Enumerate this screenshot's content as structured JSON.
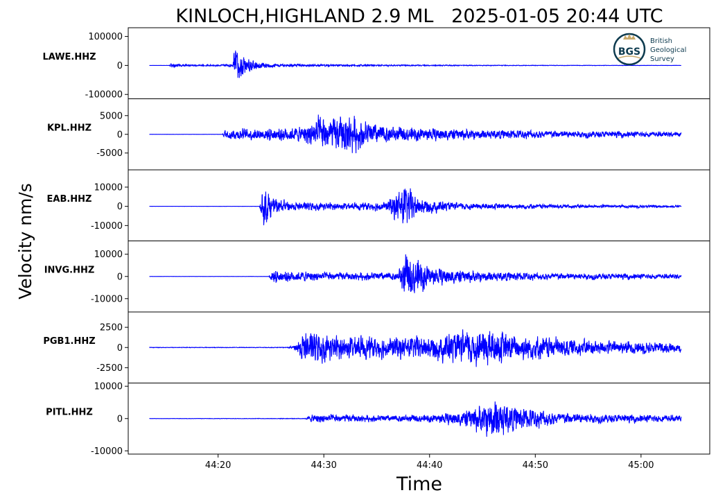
{
  "chart_data": {
    "type": "line",
    "title": "KINLOCH,HIGHLAND 2.9 ML   2025-01-05 20:44 UTC",
    "xlabel": "Time",
    "ylabel": "Velocity nm/s",
    "xlim": [
      11.5,
      66.5
    ],
    "x_ticks": [
      {
        "t": 20,
        "label": "44:20"
      },
      {
        "t": 30,
        "label": "44:30"
      },
      {
        "t": 40,
        "label": "44:40"
      },
      {
        "t": 50,
        "label": "44:50"
      },
      {
        "t": 60,
        "label": "45:00"
      }
    ],
    "trace_start": 13.5,
    "trace_end": 63.8,
    "line_color": "#0000ff",
    "logo": {
      "text_lines": [
        "British",
        "Geological",
        "Survey"
      ],
      "badge": "BGS",
      "color": "#0e3b4f",
      "accent": "#c9a96a"
    },
    "series": [
      {
        "name": "LAWE.HHZ",
        "ylim": [
          -115000,
          130000
        ],
        "yticks": [
          {
            "v": 100000,
            "label": "100000"
          },
          {
            "v": 0,
            "label": "0"
          },
          {
            "v": -100000,
            "label": "-100000"
          }
        ],
        "envelope": [
          [
            13.5,
            200
          ],
          [
            15.4,
            400
          ],
          [
            15.5,
            14000
          ],
          [
            16.5,
            5000
          ],
          [
            20.0,
            4000
          ],
          [
            21.4,
            8000
          ],
          [
            21.6,
            130000
          ],
          [
            22.2,
            60000
          ],
          [
            23.5,
            25000
          ],
          [
            25.5,
            8000
          ],
          [
            30,
            6000
          ],
          [
            40,
            3000
          ],
          [
            50,
            1500
          ],
          [
            63.8,
            600
          ]
        ]
      },
      {
        "name": "KPL.HHZ",
        "ylim": [
          -9500,
          9500
        ],
        "yticks": [
          {
            "v": 5000,
            "label": "5000"
          },
          {
            "v": 0,
            "label": "0"
          },
          {
            "v": -5000,
            "label": "-5000"
          }
        ],
        "envelope": [
          [
            13.5,
            10
          ],
          [
            20.4,
            10
          ],
          [
            20.6,
            2000
          ],
          [
            24,
            2500
          ],
          [
            28,
            3000
          ],
          [
            29.5,
            7000
          ],
          [
            31,
            6500
          ],
          [
            32.3,
            8200
          ],
          [
            34,
            5000
          ],
          [
            37,
            3000
          ],
          [
            45,
            2000
          ],
          [
            55,
            1400
          ],
          [
            63.8,
            900
          ]
        ]
      },
      {
        "name": "EAB.HHZ",
        "ylim": [
          -18000,
          19000
        ],
        "yticks": [
          {
            "v": 10000,
            "label": "10000"
          },
          {
            "v": 0,
            "label": "0"
          },
          {
            "v": -10000,
            "label": "-10000"
          }
        ],
        "envelope": [
          [
            13.5,
            10
          ],
          [
            23.9,
            60
          ],
          [
            24.3,
            16000
          ],
          [
            25.3,
            7000
          ],
          [
            27,
            3500
          ],
          [
            33,
            2500
          ],
          [
            36,
            4000
          ],
          [
            37.6,
            18000
          ],
          [
            39,
            7000
          ],
          [
            42,
            3000
          ],
          [
            50,
            1800
          ],
          [
            63.8,
            800
          ]
        ]
      },
      {
        "name": "INVG.HHZ",
        "ylim": [
          -16000,
          16000
        ],
        "yticks": [
          {
            "v": 10000,
            "label": "10000"
          },
          {
            "v": 0,
            "label": "0"
          },
          {
            "v": -10000,
            "label": "-10000"
          }
        ],
        "envelope": [
          [
            13.5,
            10
          ],
          [
            24.8,
            80
          ],
          [
            25.1,
            4500
          ],
          [
            27,
            3500
          ],
          [
            32,
            2500
          ],
          [
            37,
            2800
          ],
          [
            37.6,
            15000
          ],
          [
            38.6,
            13000
          ],
          [
            40.5,
            6000
          ],
          [
            44,
            4000
          ],
          [
            50,
            2500
          ],
          [
            63.8,
            1500
          ]
        ]
      },
      {
        "name": "PGB1.HHZ",
        "ylim": [
          -4400,
          4400
        ],
        "yticks": [
          {
            "v": 2500,
            "label": "2500"
          },
          {
            "v": 0,
            "label": "0"
          },
          {
            "v": -2500,
            "label": "-2500"
          }
        ],
        "envelope": [
          [
            13.5,
            50
          ],
          [
            26.5,
            60
          ],
          [
            27.2,
            400
          ],
          [
            28.2,
            3300
          ],
          [
            31,
            2200
          ],
          [
            35,
            2000
          ],
          [
            40,
            2200
          ],
          [
            43,
            3000
          ],
          [
            45.5,
            3800
          ],
          [
            48,
            2500
          ],
          [
            55,
            1500
          ],
          [
            63.8,
            900
          ]
        ]
      },
      {
        "name": "PITL.HHZ",
        "ylim": [
          -11000,
          11000
        ],
        "yticks": [
          {
            "v": 10000,
            "label": "10000"
          },
          {
            "v": 0,
            "label": "0"
          },
          {
            "v": -10000,
            "label": "-10000"
          }
        ],
        "envelope": [
          [
            13.5,
            40
          ],
          [
            28.2,
            150
          ],
          [
            29.0,
            2000
          ],
          [
            35,
            1500
          ],
          [
            40,
            1800
          ],
          [
            43,
            3500
          ],
          [
            45,
            7000
          ],
          [
            46.2,
            10500
          ],
          [
            48,
            6000
          ],
          [
            52,
            3000
          ],
          [
            57,
            2000
          ],
          [
            63.8,
            1500
          ]
        ]
      }
    ]
  }
}
